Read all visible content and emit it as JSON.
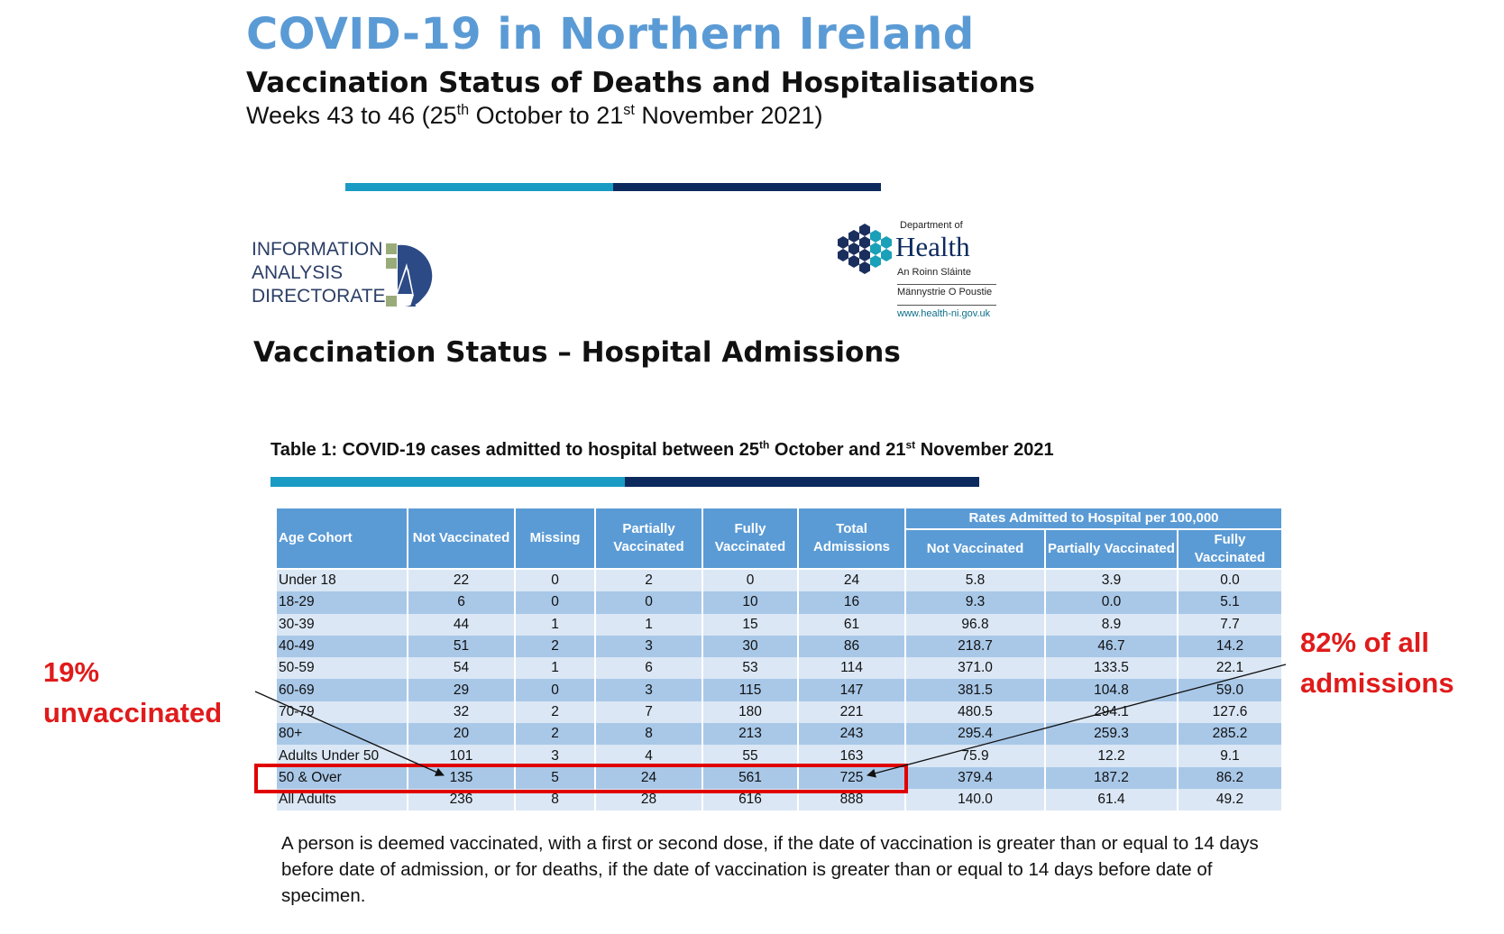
{
  "header": {
    "title": "COVID-19 in Northern Ireland",
    "subtitle": "Vaccination Status of Deaths and Hospitalisations",
    "weeks_pre": "Weeks 43 to 46 (25",
    "weeks_sup1": "th",
    "weeks_mid": " October to 21",
    "weeks_sup2": "st",
    "weeks_post": " November 2021)"
  },
  "logos": {
    "iad_line1": "INFORMATION",
    "iad_line2": "ANALYSIS",
    "iad_line3": "DIRECTORATE",
    "doh_small": "Department of",
    "doh_name": "Health",
    "doh_irish": "An Roinn Sláinte",
    "doh_scots": "Männystrie O Poustie",
    "doh_url": "www.health-ni.gov.uk"
  },
  "section_title": "Vaccination Status – Hospital Admissions",
  "table": {
    "caption_pre": "Table 1: COVID-19 cases admitted to hospital between 25",
    "caption_sup1": "th",
    "caption_mid": " October and 21",
    "caption_sup2": "st",
    "caption_post": " November 2021",
    "headers": {
      "age": "Age Cohort",
      "not_vacc": "Not Vaccinated",
      "missing": "Missing",
      "partial": "Partially Vaccinated",
      "fully": "Fully Vaccinated",
      "total": "Total Admissions",
      "rates_group": "Rates Admitted to Hospital per 100,000",
      "rate_not": "Not Vaccinated",
      "rate_partial": "Partially Vaccinated",
      "rate_fully": "Fully Vaccinated"
    },
    "rows": [
      [
        "Under 18",
        "22",
        "0",
        "2",
        "0",
        "24",
        "5.8",
        "3.9",
        "0.0"
      ],
      [
        "18-29",
        "6",
        "0",
        "0",
        "10",
        "16",
        "9.3",
        "0.0",
        "5.1"
      ],
      [
        "30-39",
        "44",
        "1",
        "1",
        "15",
        "61",
        "96.8",
        "8.9",
        "7.7"
      ],
      [
        "40-49",
        "51",
        "2",
        "3",
        "30",
        "86",
        "218.7",
        "46.7",
        "14.2"
      ],
      [
        "50-59",
        "54",
        "1",
        "6",
        "53",
        "114",
        "371.0",
        "133.5",
        "22.1"
      ],
      [
        "60-69",
        "29",
        "0",
        "3",
        "115",
        "147",
        "381.5",
        "104.8",
        "59.0"
      ],
      [
        "70-79",
        "32",
        "2",
        "7",
        "180",
        "221",
        "480.5",
        "294.1",
        "127.6"
      ],
      [
        "80+",
        "20",
        "2",
        "8",
        "213",
        "243",
        "295.4",
        "259.3",
        "285.2"
      ],
      [
        "Adults Under 50",
        "101",
        "3",
        "4",
        "55",
        "163",
        "75.9",
        "12.2",
        "9.1"
      ],
      [
        "50 & Over",
        "135",
        "5",
        "24",
        "561",
        "725",
        "379.4",
        "187.2",
        "86.2"
      ],
      [
        "All Adults",
        "236",
        "8",
        "28",
        "616",
        "888",
        "140.0",
        "61.4",
        "49.2"
      ]
    ]
  },
  "annotations": {
    "left_line1": "19%",
    "left_line2": "unvaccinated",
    "right_line1": "82% of all",
    "right_line2": "admissions",
    "color": "#e01b1b"
  },
  "footnote": "A person is deemed vaccinated, with a first or second dose, if the date of vaccination is greater than or equal to 14 days before date of admission, or for deaths, if the date of vaccination is greater than or equal to 14 days before date of specimen.",
  "colors": {
    "title_blue": "#5b9bd5",
    "header_blue": "#5b9bd5",
    "row_light": "#dbe7f5",
    "row_dark": "#a9c8e8",
    "bar_light": "#1a9bc4",
    "bar_dark": "#0d2a5e"
  }
}
